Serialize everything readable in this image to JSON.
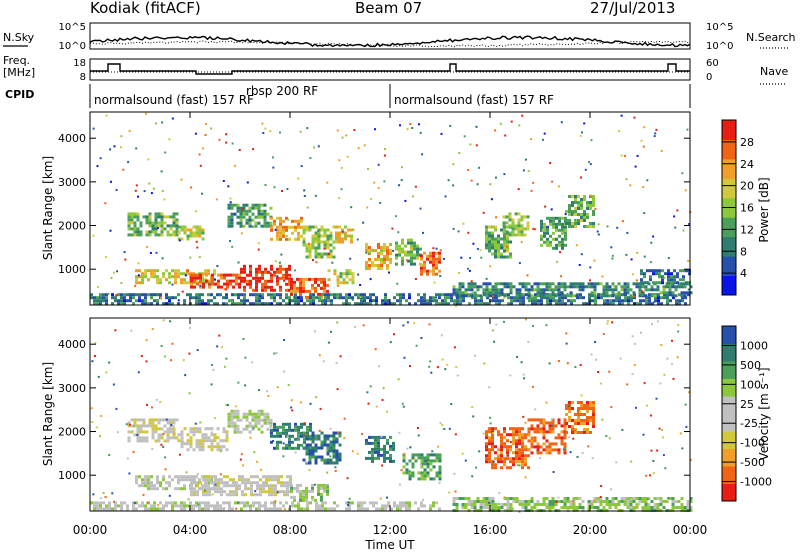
{
  "header": {
    "station": "Kodiak (fitACF)",
    "beam": "Beam 07",
    "date": "27/Jul/2013"
  },
  "left_labels": {
    "nsky": "N.Sky",
    "freq": "Freq.",
    "freq_unit": "[MHz]",
    "cpid": "CPID"
  },
  "right_labels": {
    "nsearch": "N.Search",
    "nave": "Nave"
  },
  "noise_ticks_left": [
    "10^5",
    "10^0"
  ],
  "noise_ticks_right": [
    "10^5",
    "10^0"
  ],
  "freq_ticks": [
    "18",
    "8"
  ],
  "nave_ticks": [
    "60",
    "0"
  ],
  "cpid_segments": [
    {
      "start_h": 0.0,
      "end_h": 12.0,
      "label": "normalsound (fast) 157 RF"
    },
    {
      "start_h": 12.0,
      "end_h": 24.0,
      "label": "normalsound (fast) 157 RF"
    }
  ],
  "cpid_extra": "rbsp 200 RF",
  "colors": {
    "power": [
      "#0a14e6",
      "#2850aa",
      "#2e7d6e",
      "#4aa05a",
      "#8cc83c",
      "#d2c83c",
      "#f0a028",
      "#f06414",
      "#e61e14"
    ],
    "velocity": [
      "#e61e14",
      "#f06414",
      "#f0a028",
      "#d2c83c",
      "#c0c0c0",
      "#c0c0c0",
      "#8cc83c",
      "#4aa05a",
      "#2e7d6e",
      "#2850aa"
    ]
  },
  "chart_data": [
    {
      "type": "heatmap",
      "panel": "power",
      "xlabel": "",
      "ylabel": "Slant Range [km]",
      "xlim": [
        0,
        24
      ],
      "ylim": [
        180,
        4600
      ],
      "yticks": [
        "1000",
        "2000",
        "3000",
        "4000"
      ],
      "colorbar_label": "Power [dB]",
      "colorbar_ticks": [
        "4",
        "8",
        "12",
        "16",
        "20",
        "24",
        "28"
      ],
      "colorbar_range": [
        0,
        32
      ],
      "blobs": [
        {
          "t0": 1.5,
          "t1": 3.5,
          "r0": 1800,
          "r1": 2300,
          "v": 14
        },
        {
          "t0": 3.5,
          "t1": 4.5,
          "r0": 1700,
          "r1": 2000,
          "v": 18
        },
        {
          "t0": 5.5,
          "t1": 7.2,
          "r0": 2000,
          "r1": 2500,
          "v": 12
        },
        {
          "t0": 7.2,
          "t1": 8.5,
          "r0": 1700,
          "r1": 2200,
          "v": 24
        },
        {
          "t0": 8.5,
          "t1": 9.8,
          "r0": 1300,
          "r1": 2000,
          "v": 16
        },
        {
          "t0": 9.8,
          "t1": 10.5,
          "r0": 1600,
          "r1": 2000,
          "v": 20
        },
        {
          "t0": 11.0,
          "t1": 12.0,
          "r0": 1000,
          "r1": 1600,
          "v": 22
        },
        {
          "t0": 12.2,
          "t1": 13.2,
          "r0": 1100,
          "r1": 1700,
          "v": 14
        },
        {
          "t0": 13.2,
          "t1": 14.0,
          "r0": 900,
          "r1": 1400,
          "v": 26
        },
        {
          "t0": 15.8,
          "t1": 16.8,
          "r0": 1300,
          "r1": 2000,
          "v": 14
        },
        {
          "t0": 16.5,
          "t1": 17.5,
          "r0": 1800,
          "r1": 2300,
          "v": 16
        },
        {
          "t0": 18.0,
          "t1": 19.0,
          "r0": 1500,
          "r1": 2200,
          "v": 12
        },
        {
          "t0": 19.0,
          "t1": 20.2,
          "r0": 2000,
          "r1": 2700,
          "v": 14
        },
        {
          "t0": 1.8,
          "t1": 5.0,
          "r0": 700,
          "r1": 1000,
          "v": 20
        },
        {
          "t0": 4.0,
          "t1": 6.0,
          "r0": 600,
          "r1": 900,
          "v": 28
        },
        {
          "t0": 6.0,
          "t1": 8.0,
          "r0": 550,
          "r1": 1100,
          "v": 30
        },
        {
          "t0": 8.0,
          "t1": 9.5,
          "r0": 350,
          "r1": 800,
          "v": 28
        },
        {
          "t0": 9.5,
          "t1": 10.5,
          "r0": 700,
          "r1": 1000,
          "v": 18
        },
        {
          "t0": 0.0,
          "t1": 24.0,
          "r0": 200,
          "r1": 450,
          "v": 8
        },
        {
          "t0": 14.5,
          "t1": 24.0,
          "r0": 400,
          "r1": 700,
          "v": 10
        },
        {
          "t0": 22.0,
          "t1": 24.0,
          "r0": 700,
          "r1": 1000,
          "v": 8
        }
      ]
    },
    {
      "type": "heatmap",
      "panel": "velocity",
      "xlabel": "Time UT",
      "ylabel": "Slant Range [km]",
      "xlim": [
        0,
        24
      ],
      "ylim": [
        180,
        4600
      ],
      "yticks": [
        "1000",
        "2000",
        "3000",
        "4000"
      ],
      "xticks": [
        "00:00",
        "04:00",
        "08:00",
        "12:00",
        "16:00",
        "20:00",
        "00:00"
      ],
      "colorbar_label": "Velocity [m s⁻¹]",
      "colorbar_ticks": [
        "1000",
        "500",
        "100",
        "25",
        "-25",
        "-100",
        "-500",
        "-1000"
      ],
      "blobs": [
        {
          "t0": 1.5,
          "t1": 3.5,
          "r0": 1800,
          "r1": 2300,
          "v": 4
        },
        {
          "t0": 3.5,
          "t1": 5.5,
          "r0": 1600,
          "r1": 2100,
          "v": 4
        },
        {
          "t0": 5.5,
          "t1": 7.2,
          "r0": 2000,
          "r1": 2500,
          "v": 5
        },
        {
          "t0": 7.2,
          "t1": 8.8,
          "r0": 1600,
          "r1": 2200,
          "v": 8
        },
        {
          "t0": 8.5,
          "t1": 10.0,
          "r0": 1300,
          "r1": 2000,
          "v": 8
        },
        {
          "t0": 11.0,
          "t1": 12.2,
          "r0": 1300,
          "r1": 1900,
          "v": 8
        },
        {
          "t0": 12.5,
          "t1": 14.0,
          "r0": 900,
          "r1": 1500,
          "v": 7
        },
        {
          "t0": 15.8,
          "t1": 17.5,
          "r0": 1200,
          "r1": 2100,
          "v": 1
        },
        {
          "t0": 17.5,
          "t1": 19.0,
          "r0": 1500,
          "r1": 2300,
          "v": 1
        },
        {
          "t0": 19.0,
          "t1": 20.2,
          "r0": 2000,
          "r1": 2700,
          "v": 1
        },
        {
          "t0": 1.8,
          "t1": 5.0,
          "r0": 700,
          "r1": 1000,
          "v": 5
        },
        {
          "t0": 4.0,
          "t1": 8.0,
          "r0": 550,
          "r1": 1000,
          "v": 4
        },
        {
          "t0": 8.0,
          "t1": 9.5,
          "r0": 400,
          "r1": 800,
          "v": 6
        },
        {
          "t0": 14.5,
          "t1": 24.0,
          "r0": 200,
          "r1": 500,
          "v": 6
        },
        {
          "t0": 0.0,
          "t1": 14.0,
          "r0": 200,
          "r1": 400,
          "v": 5
        }
      ]
    }
  ]
}
